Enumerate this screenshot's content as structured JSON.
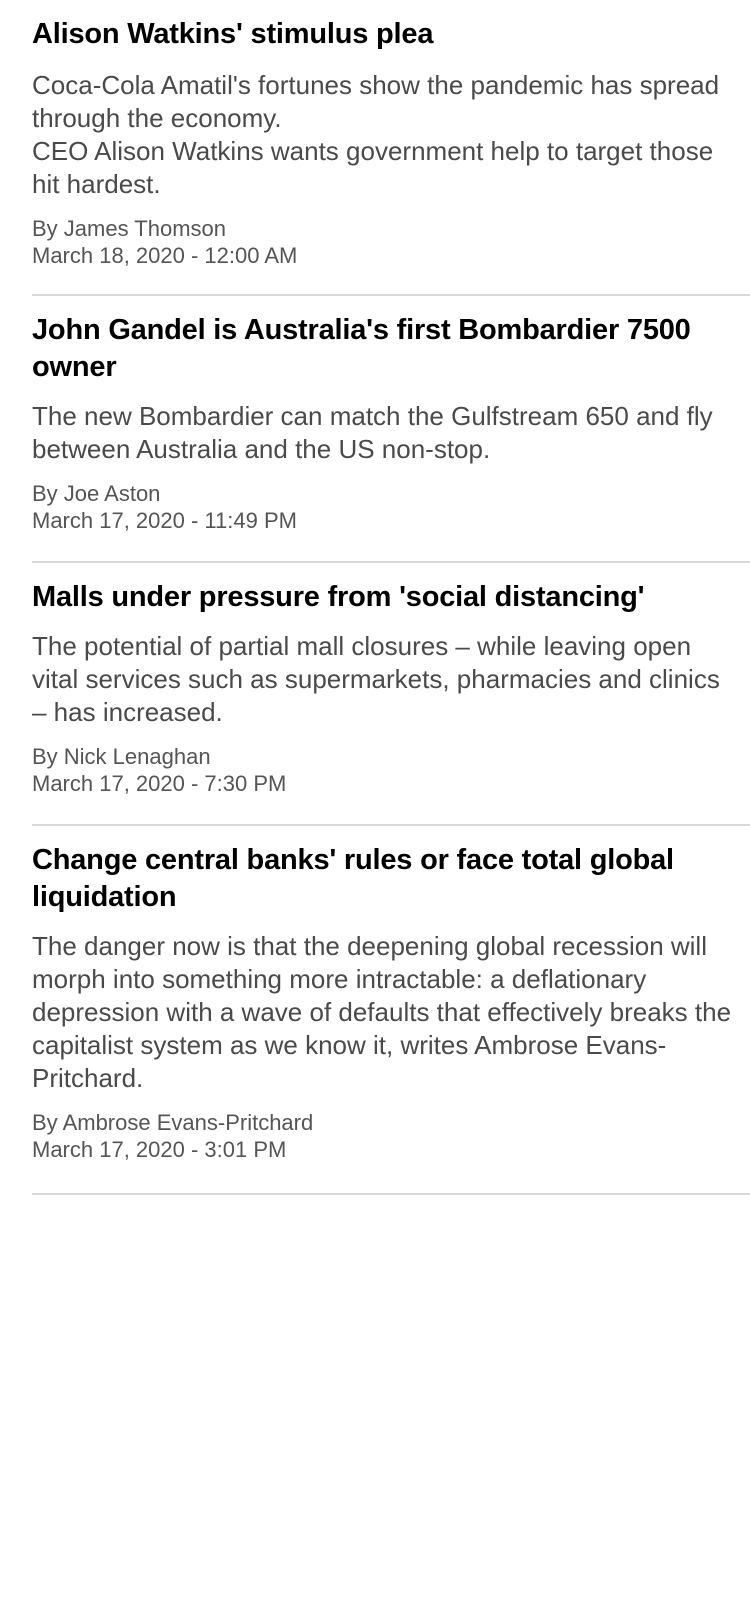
{
  "articles": [
    {
      "headline": "Alison Watkins' stimulus plea",
      "summary": "Coca-Cola Amatil's fortunes show the pandemic has spread through the economy.\nCEO Alison Watkins wants government help to target those hit hardest.",
      "byline": "By James Thomson",
      "timestamp": "March 18, 2020 - 12:00 AM"
    },
    {
      "headline": "John Gandel is Australia's first Bombardier 7500 owner",
      "summary": "The new Bombardier can match the Gulfstream 650 and fly between Australia and the US non-stop.",
      "byline": "By Joe Aston",
      "timestamp": "March 17, 2020 - 11:49 PM"
    },
    {
      "headline": "Malls under pressure from 'social distancing'",
      "summary": "The potential of partial mall closures – while leaving open vital services such as supermarkets, pharmacies and clinics – has increased.",
      "byline": "By Nick Lenaghan",
      "timestamp": "March 17, 2020 - 7:30 PM"
    },
    {
      "headline": "Change central banks' rules or face total global liquidation",
      "summary": "The danger now is that the deepening global recession will morph into something more intractable: a deflationary depression with a wave of defaults that effectively breaks the capitalist system as we know it, writes Ambrose Evans-Pritchard.",
      "byline": "By Ambrose Evans-Pritchard",
      "timestamp": "March 17, 2020 - 3:01 PM"
    }
  ]
}
